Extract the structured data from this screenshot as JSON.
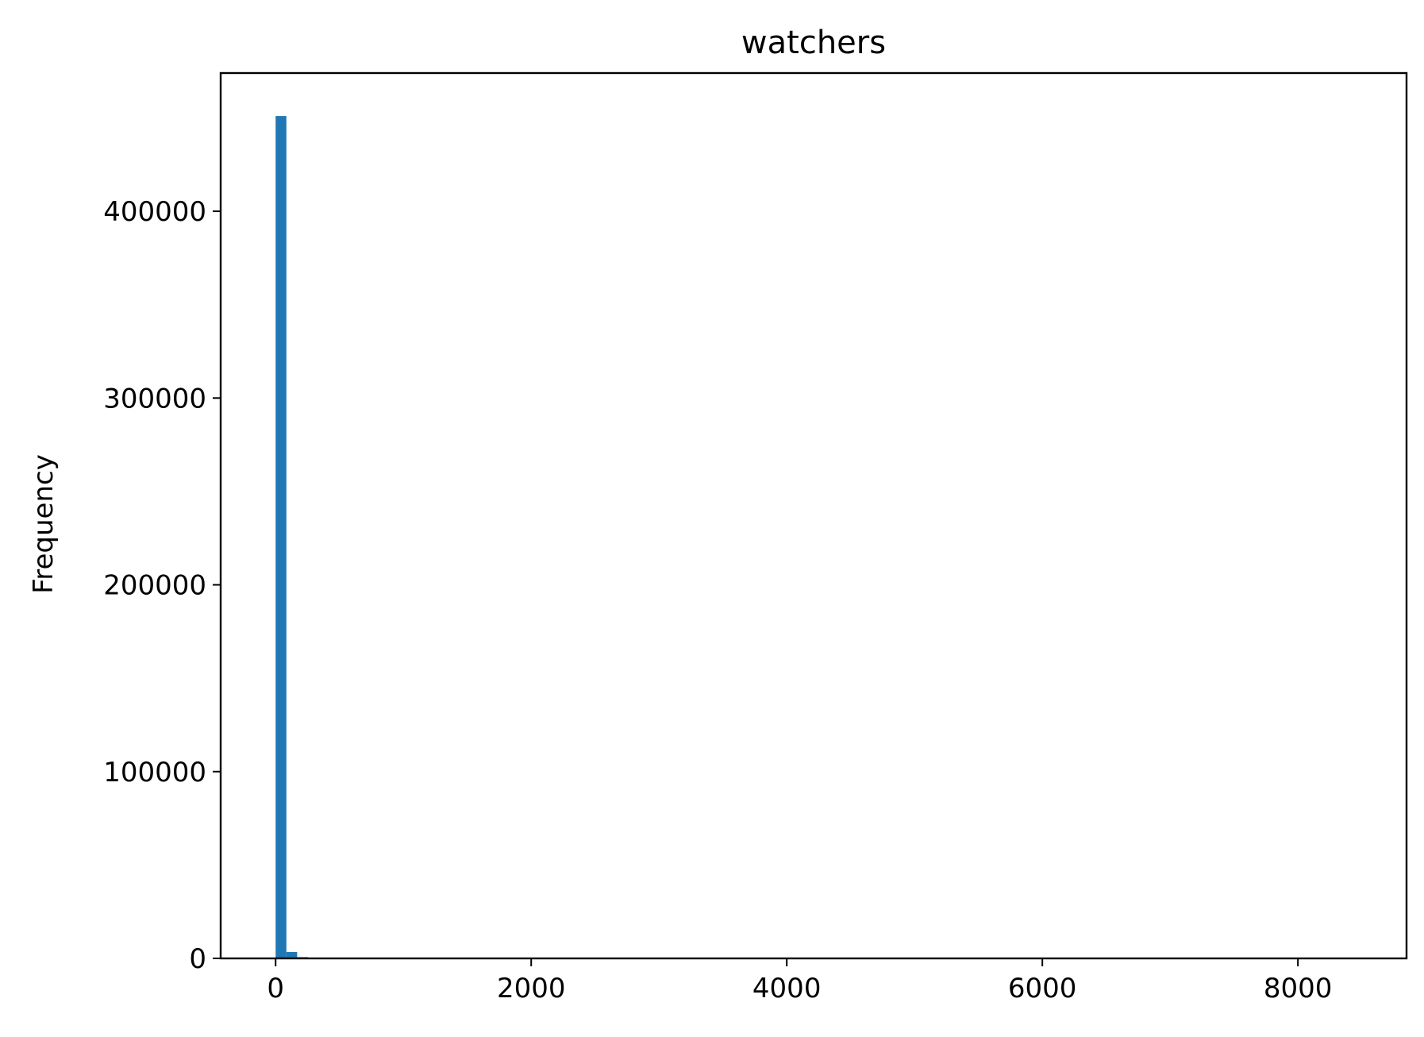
{
  "chart_data": {
    "type": "bar",
    "title": "watchers",
    "xlabel": "",
    "ylabel": "Frequency",
    "xlim": [
      -430,
      8850
    ],
    "ylim": [
      0,
      474000
    ],
    "xticks": [
      0,
      2000,
      4000,
      6000,
      8000
    ],
    "xtick_labels": [
      "0",
      "2000",
      "4000",
      "6000",
      "8000"
    ],
    "yticks": [
      0,
      100000,
      200000,
      300000,
      400000
    ],
    "ytick_labels": [
      "0",
      "100000",
      "200000",
      "300000",
      "400000"
    ],
    "grid": false,
    "bar_color": "#1f77b4",
    "bin_width": 84.2,
    "bins_left": [
      0,
      84.2,
      168.4
    ],
    "values": [
      451000,
      3400,
      700
    ]
  }
}
